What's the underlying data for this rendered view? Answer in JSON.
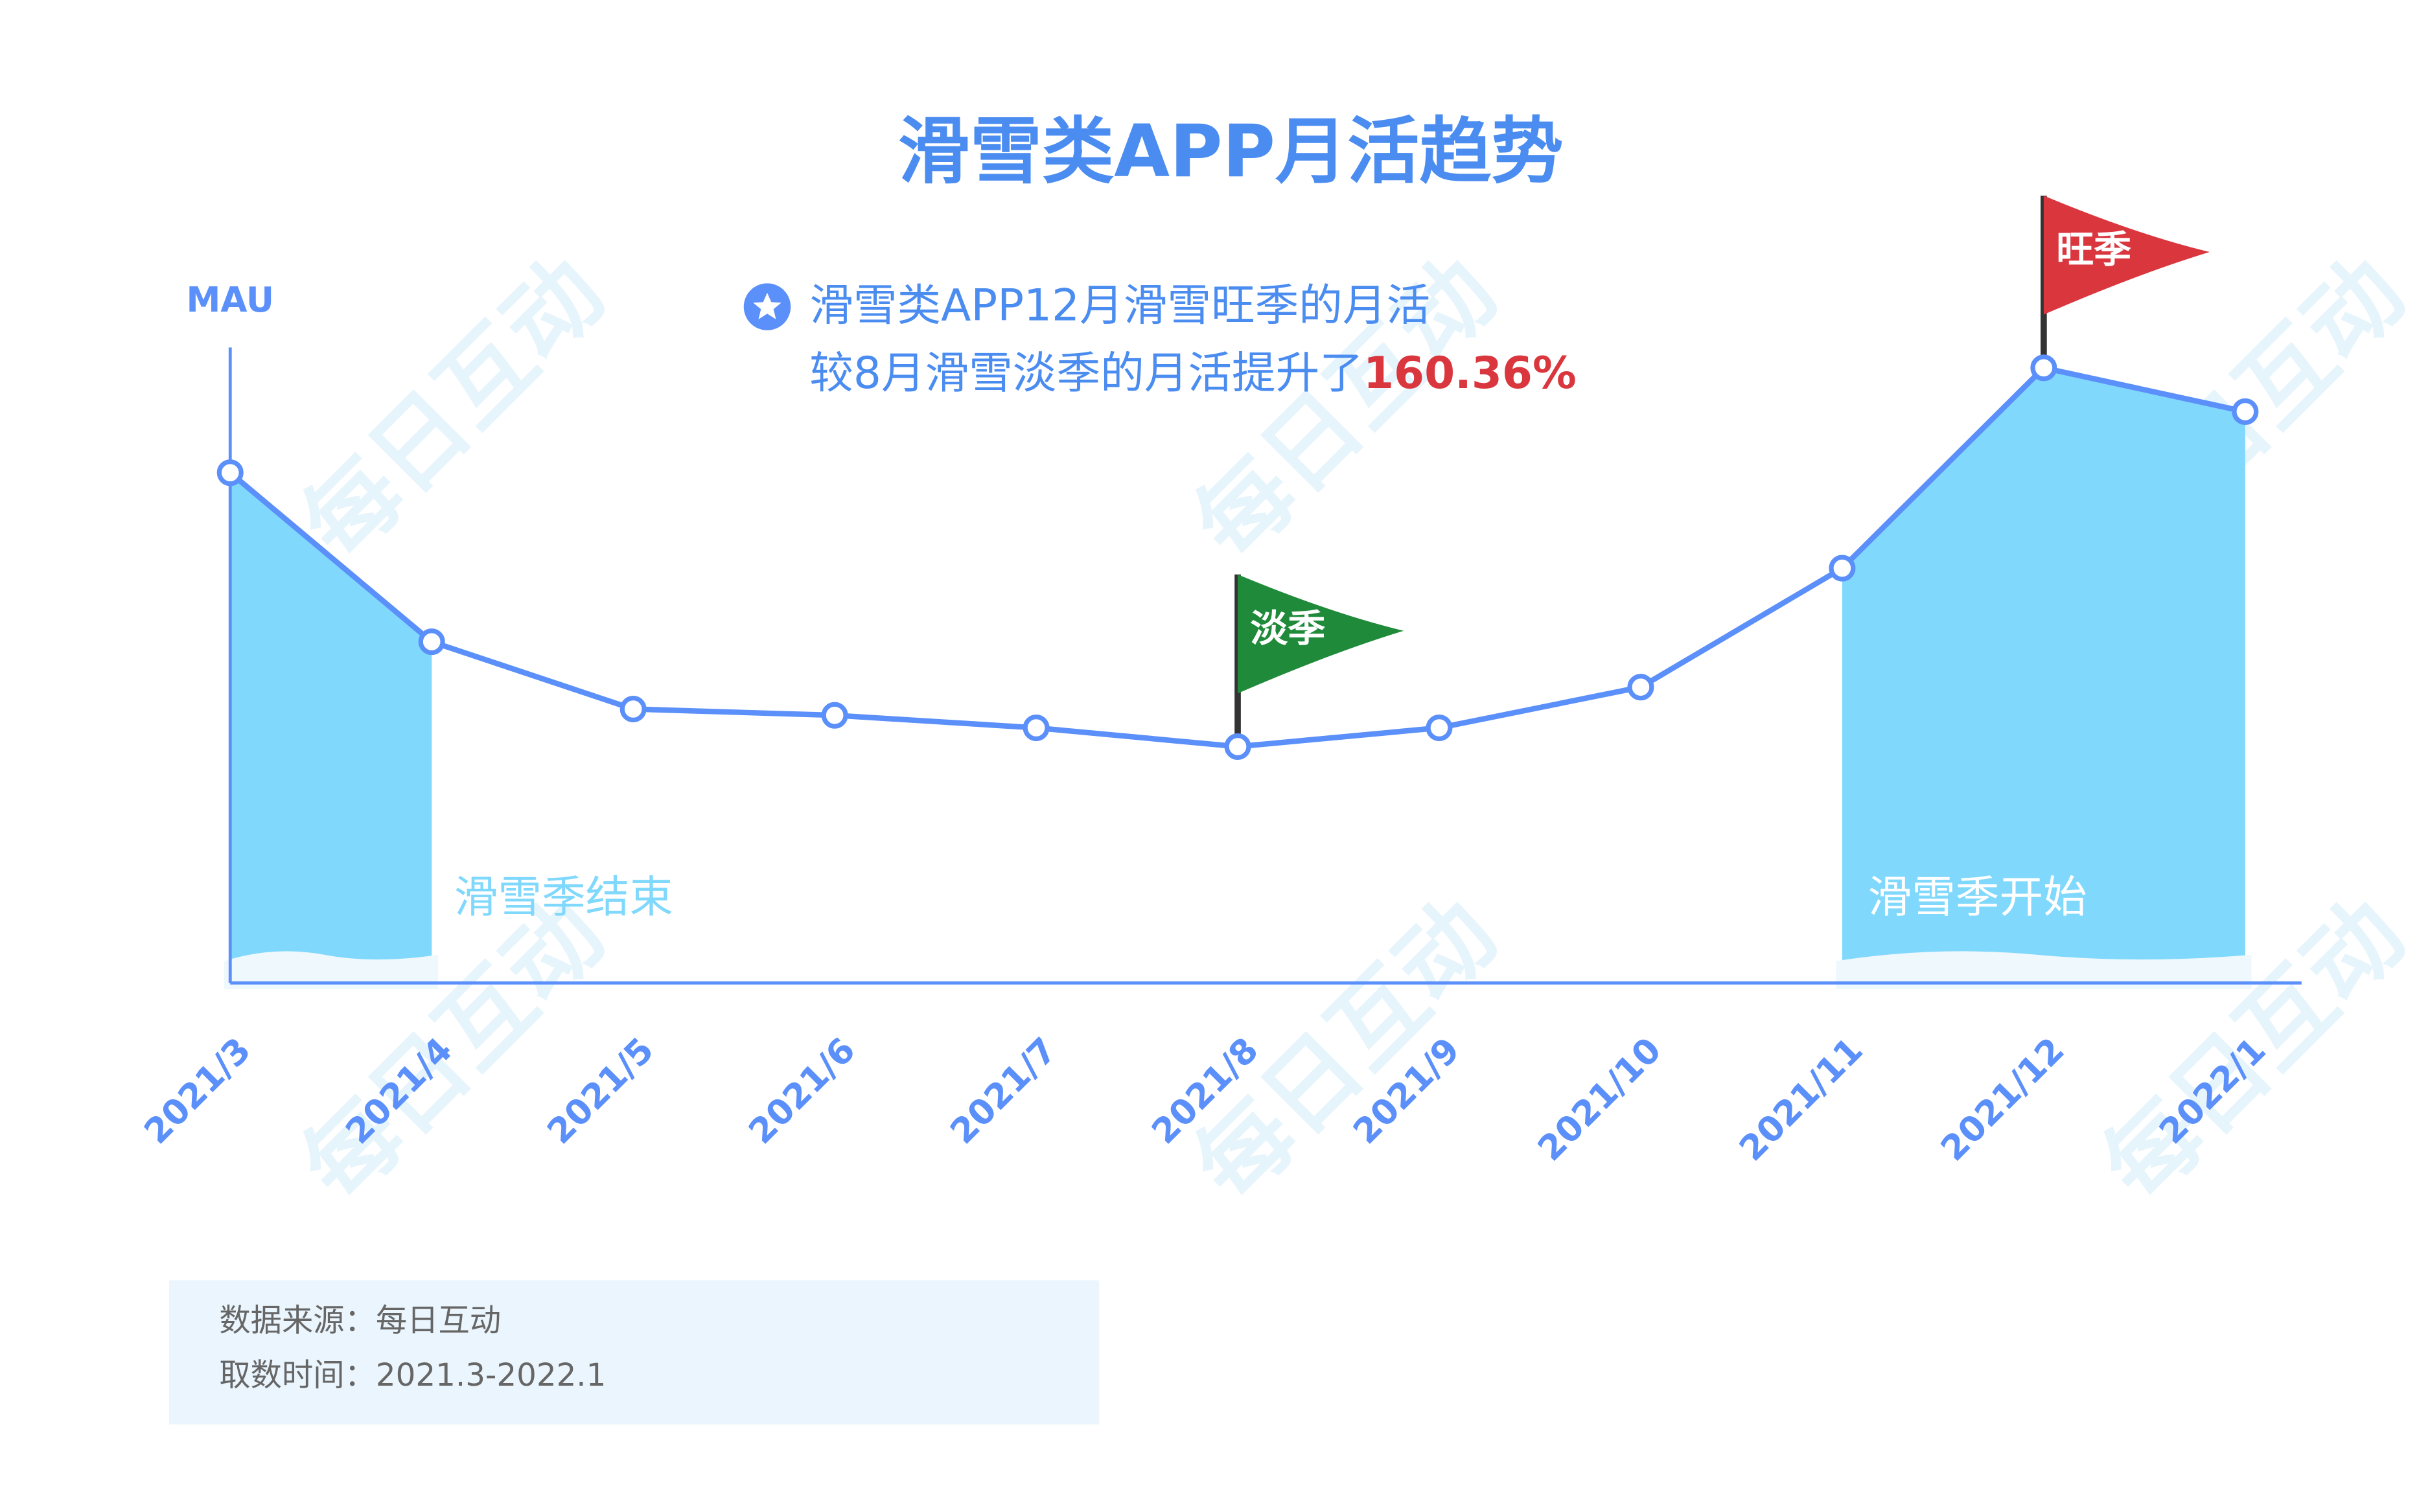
{
  "chart_data": {
    "type": "line",
    "title": "滑雪类APP月活趋势",
    "y_label": "MAU",
    "categories": [
      "2021/3",
      "2021/4",
      "2021/5",
      "2021/6",
      "2021/7",
      "2021/8",
      "2021/9",
      "2021/10",
      "2021/11",
      "2021/12",
      "2022/1"
    ],
    "series": [
      {
        "name": "MAU",
        "color": "#5b8ff9",
        "values": [
          326,
          218,
          175,
          171,
          163,
          151,
          163,
          189,
          265,
          393,
          365
        ]
      }
    ],
    "area_color": "#80d8fc",
    "ylim": [
      0,
      406
    ],
    "annotations": {
      "note_line1": "滑雪类APP12月滑雪旺季的月活",
      "note_line2": "较8月滑雪淡季的月活提升了",
      "note_highlight": "160.36%",
      "low_flag": "淡季",
      "high_flag": "旺季",
      "season_end": "滑雪季结束",
      "season_start": "滑雪季开始",
      "source": "数据来源：每日互动",
      "period": "取数时间：2021.3-2022.1",
      "watermark": "每日互动"
    }
  }
}
